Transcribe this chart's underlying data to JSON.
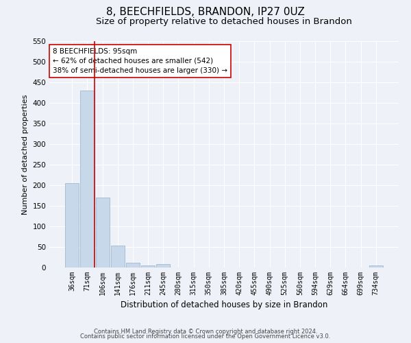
{
  "title1": "8, BEECHFIELDS, BRANDON, IP27 0UZ",
  "title2": "Size of property relative to detached houses in Brandon",
  "xlabel": "Distribution of detached houses by size in Brandon",
  "ylabel": "Number of detached properties",
  "categories": [
    "36sqm",
    "71sqm",
    "106sqm",
    "141sqm",
    "176sqm",
    "211sqm",
    "245sqm",
    "280sqm",
    "315sqm",
    "350sqm",
    "385sqm",
    "420sqm",
    "455sqm",
    "490sqm",
    "525sqm",
    "560sqm",
    "594sqm",
    "629sqm",
    "664sqm",
    "699sqm",
    "734sqm"
  ],
  "values": [
    205,
    430,
    170,
    53,
    12,
    5,
    8,
    0,
    0,
    0,
    0,
    0,
    0,
    0,
    0,
    0,
    0,
    0,
    0,
    0,
    5
  ],
  "bar_color": "#c8d8eb",
  "bar_edge_color": "#a0b8d0",
  "highlight_color": "#cc0000",
  "annotation_line1": "8 BEECHFIELDS: 95sqm",
  "annotation_line2": "← 62% of detached houses are smaller (542)",
  "annotation_line3": "38% of semi-detached houses are larger (330) →",
  "annotation_box_color": "#ffffff",
  "annotation_box_edge": "#cc0000",
  "ylim": [
    0,
    550
  ],
  "yticks": [
    0,
    50,
    100,
    150,
    200,
    250,
    300,
    350,
    400,
    450,
    500,
    550
  ],
  "footer1": "Contains HM Land Registry data © Crown copyright and database right 2024.",
  "footer2": "Contains public sector information licensed under the Open Government Licence v3.0.",
  "bg_color": "#eef2f8",
  "grid_color": "#ffffff",
  "title1_fontsize": 11,
  "title2_fontsize": 9.5,
  "ylabel_fontsize": 8,
  "xlabel_fontsize": 8.5,
  "tick_fontsize": 7,
  "annotation_fontsize": 7.5,
  "footer_fontsize": 6
}
